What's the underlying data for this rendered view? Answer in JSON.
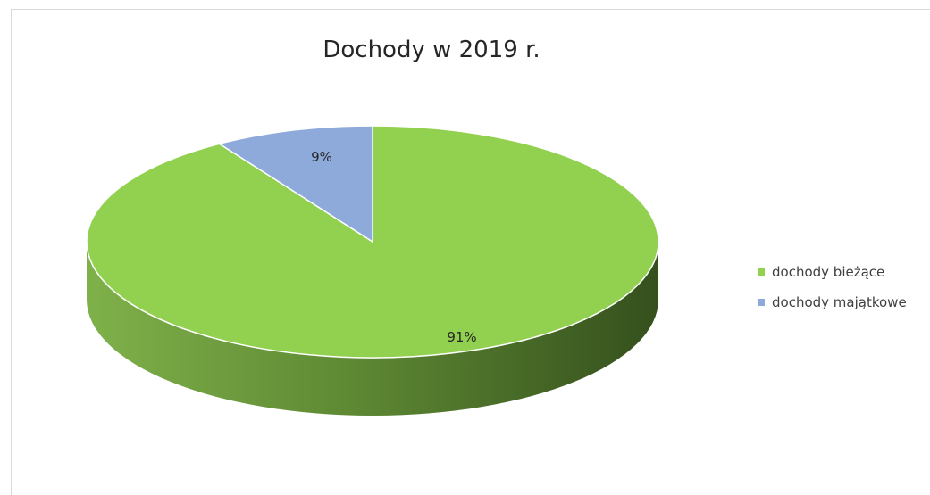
{
  "chart_data": {
    "type": "pie",
    "title": "Dochody w 2019 r.",
    "categories": [
      "dochody bieżące",
      "dochody majątkowe"
    ],
    "values": [
      91,
      9
    ],
    "data_labels": [
      "91%",
      "9%"
    ],
    "colors": [
      "#92d050",
      "#8eaadb"
    ],
    "style": "3d",
    "legend_position": "right"
  }
}
